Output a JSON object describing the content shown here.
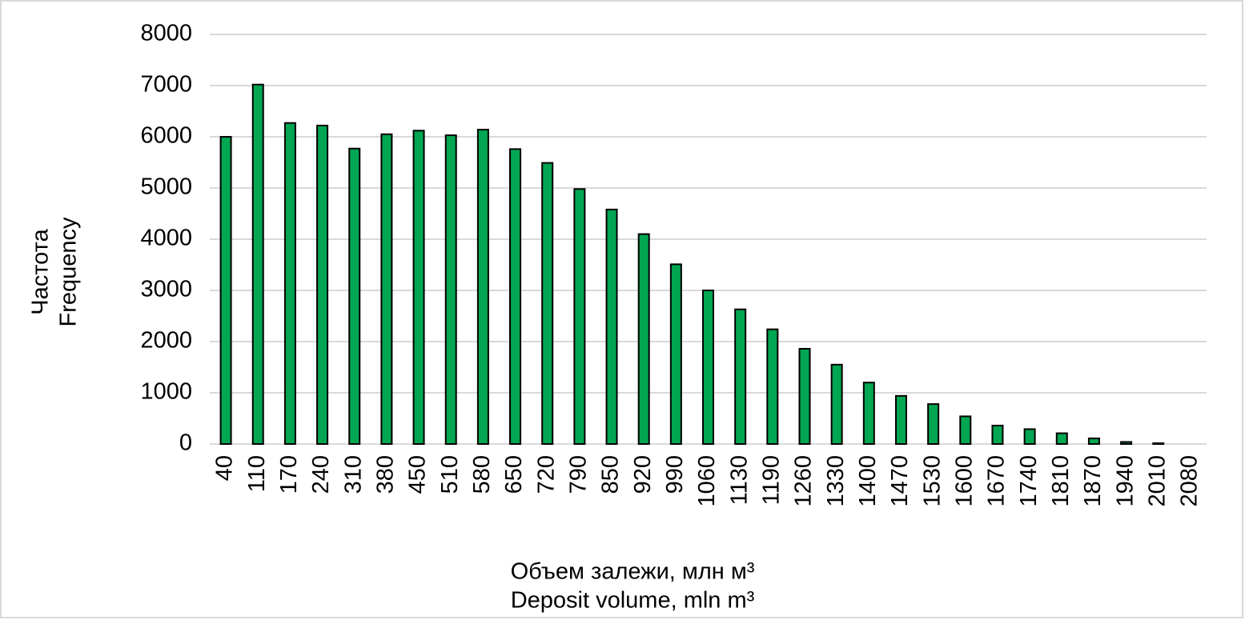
{
  "chart_data": {
    "type": "bar",
    "y_label": [
      "Частота",
      "Frequency"
    ],
    "x_label": [
      "Объем залежи, млн м³",
      "Deposit volume, mln m³"
    ],
    "categories": [
      "40",
      "110",
      "170",
      "240",
      "310",
      "380",
      "450",
      "510",
      "580",
      "650",
      "720",
      "790",
      "850",
      "920",
      "990",
      "1060",
      "1130",
      "1190",
      "1260",
      "1330",
      "1400",
      "1470",
      "1530",
      "1600",
      "1670",
      "1740",
      "1810",
      "1870",
      "1940",
      "2010",
      "2080"
    ],
    "values": [
      6000,
      7020,
      6270,
      6220,
      5770,
      6050,
      6120,
      6030,
      6140,
      5760,
      5490,
      4980,
      4580,
      4100,
      3510,
      3000,
      2630,
      2240,
      1860,
      1550,
      1200,
      940,
      780,
      540,
      360,
      290,
      210,
      110,
      40,
      15,
      0
    ],
    "color": "#00a651",
    "ylim": [
      0,
      8000
    ],
    "yticks": [
      0,
      1000,
      2000,
      3000,
      4000,
      5000,
      6000,
      7000,
      8000
    ],
    "grid": true
  }
}
